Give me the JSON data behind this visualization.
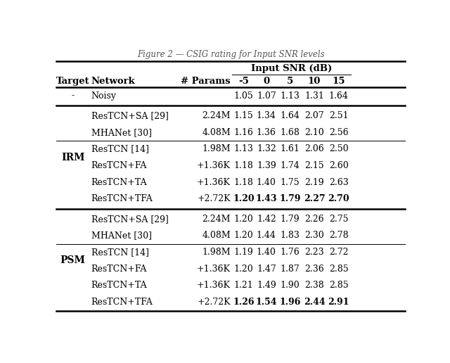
{
  "title_partial": "Figure 2 — CSIG rating for Input SNR levels",
  "header_snr": "Input SNR (dB)",
  "col_headers": [
    "Target",
    "Network",
    "# Params",
    "-5",
    "0",
    "5",
    "10",
    "15"
  ],
  "rows": [
    {
      "target": "-",
      "network": "Noisy",
      "params": "",
      "vals": [
        "1.05",
        "1.07",
        "1.13",
        "1.31",
        "1.64"
      ],
      "bold": [
        false,
        false,
        false,
        false,
        false
      ],
      "group": "noisy"
    },
    {
      "target": "",
      "network": "ResTCN+SA [29]",
      "params": "2.24M",
      "vals": [
        "1.15",
        "1.34",
        "1.64",
        "2.07",
        "2.51"
      ],
      "bold": [
        false,
        false,
        false,
        false,
        false
      ],
      "group": "irm1"
    },
    {
      "target": "",
      "network": "MHANet [30]",
      "params": "4.08M",
      "vals": [
        "1.16",
        "1.36",
        "1.68",
        "2.10",
        "2.56"
      ],
      "bold": [
        false,
        false,
        false,
        false,
        false
      ],
      "group": "irm1"
    },
    {
      "target": "",
      "network": "ResTCN [14]",
      "params": "1.98M",
      "vals": [
        "1.13",
        "1.32",
        "1.61",
        "2.06",
        "2.50"
      ],
      "bold": [
        false,
        false,
        false,
        false,
        false
      ],
      "group": "irm2"
    },
    {
      "target": "",
      "network": "ResTCN+FA",
      "params": "+1.36K",
      "vals": [
        "1.18",
        "1.39",
        "1.74",
        "2.15",
        "2.60"
      ],
      "bold": [
        false,
        false,
        false,
        false,
        false
      ],
      "group": "irm2"
    },
    {
      "target": "",
      "network": "ResTCN+TA",
      "params": "+1.36K",
      "vals": [
        "1.18",
        "1.40",
        "1.75",
        "2.19",
        "2.63"
      ],
      "bold": [
        false,
        false,
        false,
        false,
        false
      ],
      "group": "irm2"
    },
    {
      "target": "",
      "network": "ResTCN+TFA",
      "params": "+2.72K",
      "vals": [
        "1.20",
        "1.43",
        "1.79",
        "2.27",
        "2.70"
      ],
      "bold": [
        true,
        true,
        true,
        true,
        true
      ],
      "group": "irm2"
    },
    {
      "target": "",
      "network": "ResTCN+SA [29]",
      "params": "2.24M",
      "vals": [
        "1.20",
        "1.42",
        "1.79",
        "2.26",
        "2.75"
      ],
      "bold": [
        false,
        false,
        false,
        false,
        false
      ],
      "group": "psm1"
    },
    {
      "target": "",
      "network": "MHANet [30]",
      "params": "4.08M",
      "vals": [
        "1.20",
        "1.44",
        "1.83",
        "2.30",
        "2.78"
      ],
      "bold": [
        false,
        false,
        false,
        false,
        false
      ],
      "group": "psm1"
    },
    {
      "target": "",
      "network": "ResTCN [14]",
      "params": "1.98M",
      "vals": [
        "1.19",
        "1.40",
        "1.76",
        "2.23",
        "2.72"
      ],
      "bold": [
        false,
        false,
        false,
        false,
        false
      ],
      "group": "psm2"
    },
    {
      "target": "",
      "network": "ResTCN+FA",
      "params": "+1.36K",
      "vals": [
        "1.20",
        "1.47",
        "1.87",
        "2.36",
        "2.85"
      ],
      "bold": [
        false,
        false,
        false,
        false,
        false
      ],
      "group": "psm2"
    },
    {
      "target": "",
      "network": "ResTCN+TA",
      "params": "+1.36K",
      "vals": [
        "1.21",
        "1.49",
        "1.90",
        "2.38",
        "2.85"
      ],
      "bold": [
        false,
        false,
        false,
        false,
        false
      ],
      "group": "psm2"
    },
    {
      "target": "",
      "network": "ResTCN+TFA",
      "params": "+2.72K",
      "vals": [
        "1.26",
        "1.54",
        "1.96",
        "2.44",
        "2.91"
      ],
      "bold": [
        true,
        true,
        true,
        true,
        true
      ],
      "group": "psm2"
    }
  ],
  "irm_label": "IRM",
  "psm_label": "PSM",
  "bg_color": "#ffffff",
  "thick_lw": 1.8,
  "thin_lw": 0.7,
  "header_fs": 9.5,
  "body_fs": 9.0,
  "title_fs": 8.5
}
